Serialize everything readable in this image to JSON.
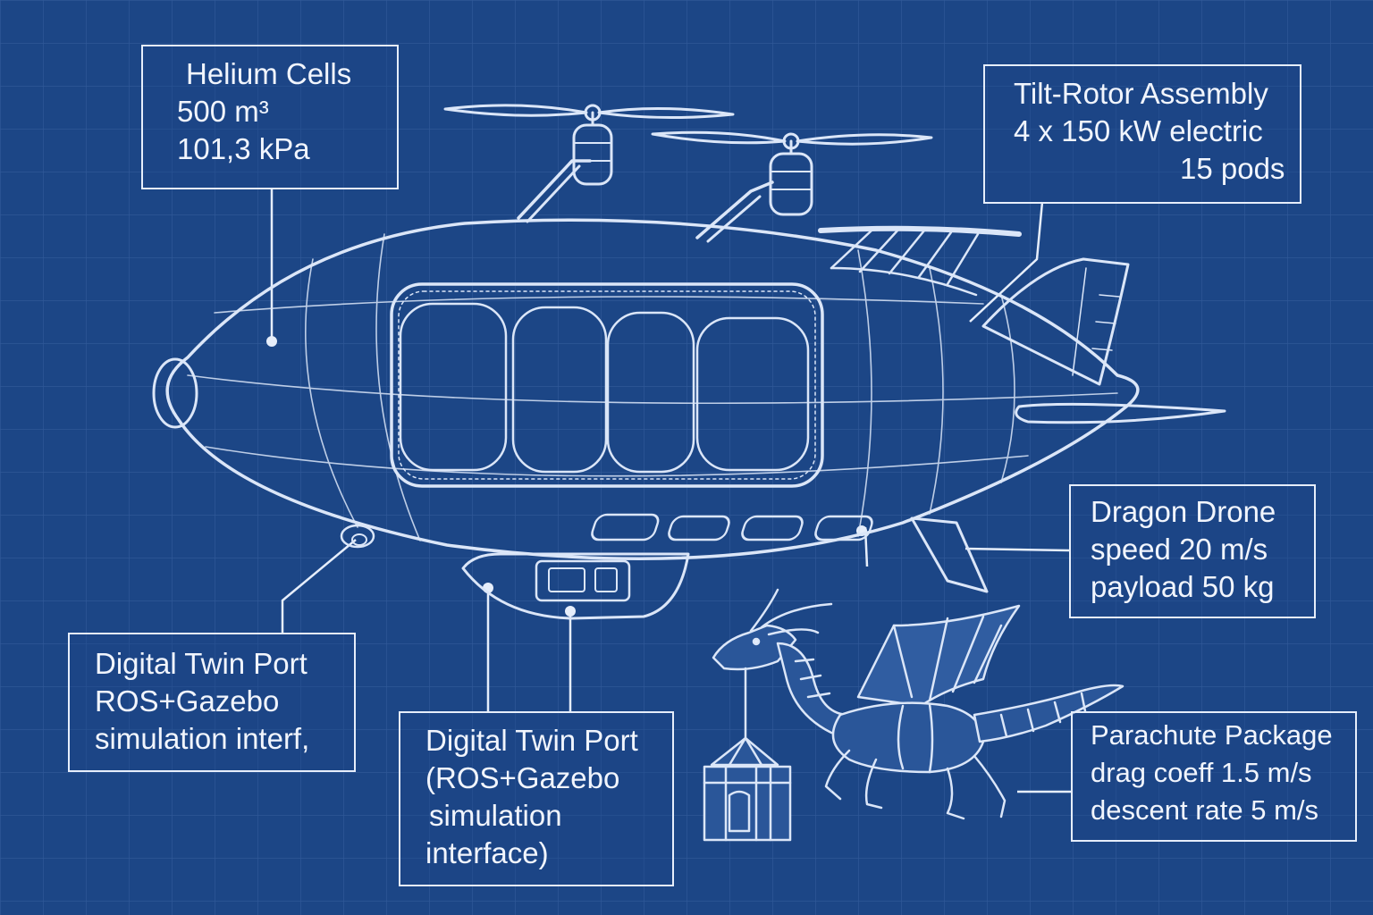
{
  "callouts": {
    "helium": {
      "lines": [
        "Helium Cells",
        "500 m³",
        "101,3 kPa"
      ]
    },
    "tilt_rotor": {
      "lines": [
        "Tilt-Rotor Assembly",
        "4 x 150 kW electric",
        "15 pods"
      ]
    },
    "dragon": {
      "lines": [
        "Dragon Drone",
        "speed 20 m/s",
        "payload 50 kg"
      ]
    },
    "twin_left": {
      "lines": [
        "Digital Twin Port",
        "ROS+Gazebo",
        "simulation interf,"
      ]
    },
    "twin_center": {
      "lines": [
        "Digital Twin Port",
        "(ROS+Gazebo",
        "simulation",
        "interface)"
      ]
    },
    "parachute": {
      "lines": [
        "Parachute Package",
        "drag coeff  1.5 m/s",
        "descent rate 5 m/s"
      ]
    }
  },
  "colors": {
    "background": "#1c4686",
    "grid": "#3a63a3",
    "ink": "#e6eefb"
  }
}
